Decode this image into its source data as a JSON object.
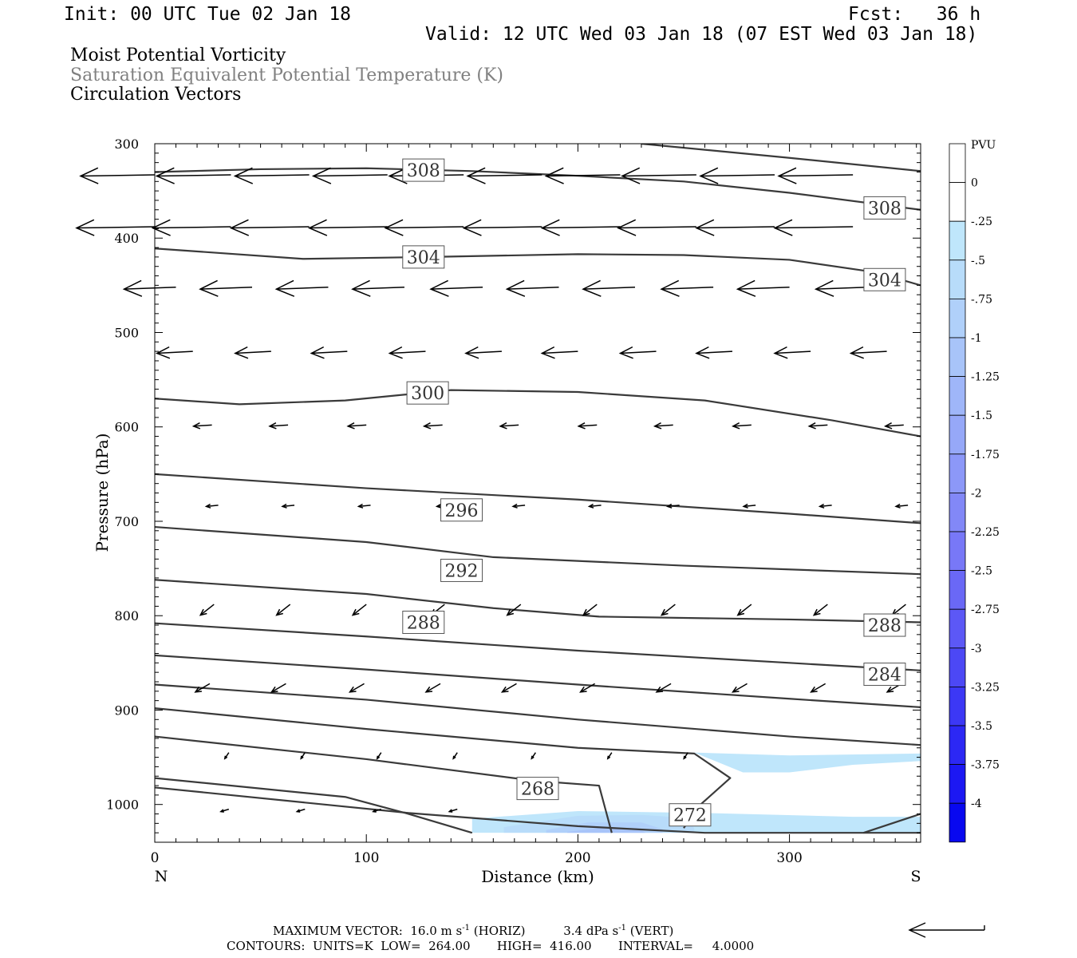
{
  "header": {
    "init": "Init: 00 UTC Tue 02 Jan 18",
    "fcst": "Fcst:   36 h",
    "valid": "Valid: 12 UTC Wed 03 Jan 18 (07 EST Wed 03 Jan 18)",
    "fields": [
      "Moist Potential Vorticity",
      "Saturation Equivalent Potential Temperature (K)",
      "Circulation Vectors"
    ]
  },
  "chart_data": {
    "type": "cross-section",
    "xlabel": "Distance (km)",
    "ylabel": "Pressure (hPa)",
    "x_ticks": [
      0,
      100,
      200,
      300
    ],
    "y_ticks": [
      300,
      400,
      500,
      600,
      700,
      800,
      900,
      1000
    ],
    "xlim": [
      0,
      362
    ],
    "ylim": [
      300,
      1040
    ],
    "left_end_label": "N",
    "right_end_label": "S",
    "colorbar": {
      "unit": "PVU",
      "levels": [
        "0",
        "-.25",
        "-.5",
        "-.75",
        "-1",
        "-1.25",
        "-1.5",
        "-1.75",
        "-2",
        "-2.25",
        "-2.5",
        "-2.75",
        "-3",
        "-3.25",
        "-3.5",
        "-3.75",
        "-4"
      ],
      "colors": [
        "#ffffff",
        "#ffffff",
        "#bfe6fb",
        "#b8dcfa",
        "#b0d0fa",
        "#a8c4f9",
        "#9fb6f9",
        "#96a8f8",
        "#8c98f8",
        "#8288f7",
        "#7878f7",
        "#6a68f6",
        "#5c58f6",
        "#4c48f5",
        "#3c38f5",
        "#2c28f4",
        "#1c18f3",
        "#0808f0"
      ]
    },
    "contour_labels": [
      {
        "label": "308",
        "x": 127,
        "p": 328
      },
      {
        "label": "308",
        "x": 345,
        "p": 368
      },
      {
        "label": "304",
        "x": 127,
        "p": 420
      },
      {
        "label": "304",
        "x": 345,
        "p": 444
      },
      {
        "label": "300",
        "x": 129,
        "p": 564
      },
      {
        "label": "296",
        "x": 145,
        "p": 688
      },
      {
        "label": "292",
        "x": 145,
        "p": 752
      },
      {
        "label": "288",
        "x": 127,
        "p": 807
      },
      {
        "label": "288",
        "x": 345,
        "p": 810
      },
      {
        "label": "284",
        "x": 345,
        "p": 862
      },
      {
        "label": "268",
        "x": 181,
        "p": 983
      },
      {
        "label": "272",
        "x": 253,
        "p": 1011
      }
    ],
    "contours": [
      [
        [
          0,
          330
        ],
        [
          50,
          327
        ],
        [
          100,
          326
        ],
        [
          150,
          329
        ],
        [
          200,
          334
        ],
        [
          250,
          340
        ],
        [
          300,
          352
        ],
        [
          362,
          370
        ]
      ],
      [
        [
          230,
          300
        ],
        [
          300,
          315
        ],
        [
          362,
          329
        ]
      ],
      [
        [
          0,
          411
        ],
        [
          70,
          422
        ],
        [
          130,
          420
        ],
        [
          200,
          417
        ],
        [
          250,
          418
        ],
        [
          300,
          423
        ],
        [
          340,
          436
        ],
        [
          362,
          450
        ]
      ],
      [
        [
          0,
          570
        ],
        [
          40,
          576
        ],
        [
          90,
          572
        ],
        [
          140,
          561
        ],
        [
          200,
          563
        ],
        [
          260,
          572
        ],
        [
          320,
          593
        ],
        [
          362,
          610
        ]
      ],
      [
        [
          0,
          650
        ],
        [
          100,
          665
        ],
        [
          200,
          677
        ],
        [
          300,
          692
        ],
        [
          362,
          702
        ]
      ],
      [
        [
          0,
          706
        ],
        [
          100,
          722
        ],
        [
          160,
          738
        ],
        [
          250,
          747
        ],
        [
          362,
          756
        ]
      ],
      [
        [
          0,
          762
        ],
        [
          100,
          777
        ],
        [
          160,
          792
        ],
        [
          210,
          801
        ],
        [
          300,
          804
        ],
        [
          362,
          807
        ]
      ],
      [
        [
          0,
          808
        ],
        [
          100,
          822
        ],
        [
          200,
          837
        ],
        [
          300,
          850
        ],
        [
          362,
          858
        ]
      ],
      [
        [
          0,
          842
        ],
        [
          100,
          857
        ],
        [
          200,
          873
        ],
        [
          300,
          888
        ],
        [
          362,
          897
        ]
      ],
      [
        [
          0,
          873
        ],
        [
          100,
          889
        ],
        [
          200,
          910
        ],
        [
          300,
          928
        ],
        [
          362,
          937
        ]
      ],
      [
        [
          0,
          898
        ],
        [
          100,
          920
        ],
        [
          200,
          940
        ],
        [
          255,
          946
        ],
        [
          272,
          972
        ],
        [
          258,
          1000
        ],
        [
          250,
          1025
        ]
      ],
      [
        [
          0,
          928
        ],
        [
          100,
          952
        ],
        [
          180,
          975
        ],
        [
          210,
          980
        ],
        [
          216,
          1030
        ]
      ],
      [
        [
          0,
          972
        ],
        [
          90,
          992
        ],
        [
          120,
          1010
        ],
        [
          150,
          1030
        ]
      ],
      [
        [
          0,
          982
        ],
        [
          120,
          1009
        ],
        [
          200,
          1023
        ],
        [
          260,
          1030
        ],
        [
          362,
          1030
        ]
      ],
      [
        [
          335,
          1030
        ],
        [
          362,
          1010
        ]
      ]
    ],
    "shaded_regions": [
      {
        "pvu_bin": "-.25",
        "points": [
          [
            255,
            945
          ],
          [
            300,
            948
          ],
          [
            362,
            946
          ],
          [
            362,
            954
          ],
          [
            330,
            958
          ],
          [
            300,
            966
          ],
          [
            278,
            966
          ]
        ]
      },
      {
        "pvu_bin": "-.25",
        "points": [
          [
            150,
            1015
          ],
          [
            200,
            1007
          ],
          [
            260,
            1009
          ],
          [
            330,
            1013
          ],
          [
            362,
            1013
          ],
          [
            362,
            1030
          ],
          [
            150,
            1030
          ]
        ]
      },
      {
        "pvu_bin": "-.5",
        "points": [
          [
            165,
            1024
          ],
          [
            200,
            1012
          ],
          [
            230,
            1011
          ],
          [
            250,
            1014
          ],
          [
            255,
            1025
          ],
          [
            255,
            1030
          ],
          [
            165,
            1030
          ]
        ]
      },
      {
        "pvu_bin": "-.75",
        "points": [
          [
            185,
            1027
          ],
          [
            205,
            1019
          ],
          [
            230,
            1019
          ],
          [
            240,
            1026
          ],
          [
            240,
            1030
          ],
          [
            185,
            1030
          ]
        ]
      },
      {
        "pvu_bin": "-1",
        "points": [
          [
            195,
            1029
          ],
          [
            210,
            1025
          ],
          [
            228,
            1025
          ],
          [
            232,
            1030
          ],
          [
            195,
            1030
          ]
        ]
      }
    ],
    "vectors": [
      {
        "p": 333,
        "x": [
          0,
          36,
          73,
          110,
          146,
          183,
          220,
          256,
          293,
          330
        ],
        "u": -9.3,
        "w": 0.05
      },
      {
        "p": 388,
        "x": [
          0,
          36,
          73,
          110,
          146,
          183,
          220,
          256,
          293,
          330
        ],
        "u": -9.8,
        "w": 0.05
      },
      {
        "p": 452,
        "x": [
          10,
          46,
          82,
          118,
          155,
          191,
          227,
          264,
          300,
          337
        ],
        "u": -6.5,
        "w": 0.08
      },
      {
        "p": 520,
        "x": [
          18,
          55,
          91,
          128,
          164,
          200,
          237,
          273,
          310,
          346
        ],
        "u": -4.5,
        "w": 0.08
      },
      {
        "p": 598,
        "x": [
          27,
          63,
          100,
          136,
          172,
          209,
          245,
          282,
          318,
          354
        ],
        "u": -2.3,
        "w": 0.05
      },
      {
        "p": 683,
        "x": [
          30,
          66,
          102,
          139,
          175,
          211,
          248,
          284,
          320,
          356
        ],
        "u": -1.5,
        "w": 0.05
      },
      {
        "p": 788,
        "x": [
          28,
          64,
          100,
          137,
          173,
          209,
          246,
          282,
          318,
          355
        ],
        "u": -1.7,
        "w": 0.45
      },
      {
        "p": 872,
        "x": [
          26,
          62,
          99,
          135,
          171,
          208,
          244,
          280,
          317,
          353
        ],
        "u": -1.8,
        "w": 0.35
      },
      {
        "p": 945,
        "x": [
          35,
          71,
          107,
          143,
          180,
          216,
          252
        ],
        "u": -0.5,
        "w": 0.25
      },
      {
        "p": 1005,
        "x": [
          35,
          71,
          107,
          143
        ],
        "u": -1.0,
        "w": 0.1
      }
    ],
    "max_vector_arrow": "reference"
  },
  "footer": {
    "max_vector_label": "MAXIMUM VECTOR:",
    "horiz_value": "16.0 m s",
    "horiz_exp": "-1",
    "horiz_tag": "(HORIZ)",
    "vert_value": "3.4 dPa s",
    "vert_exp": "-1",
    "vert_tag": "(VERT)",
    "contours_line": "CONTOURS:  UNITS=K  LOW=  264.00       HIGH=  416.00       INTERVAL=     4.0000"
  }
}
